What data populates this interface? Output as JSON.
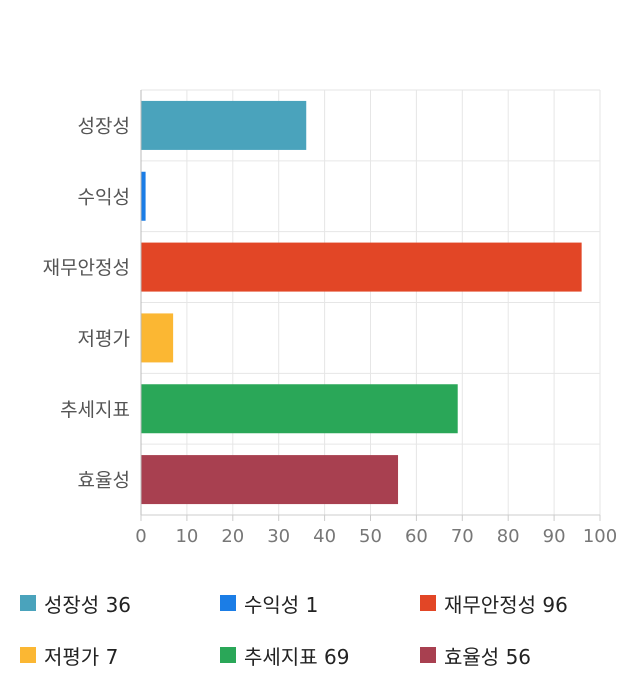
{
  "chart_data": {
    "type": "bar",
    "orientation": "horizontal",
    "categories": [
      "성장성",
      "수익성",
      "재무안정성",
      "저평가",
      "추세지표",
      "효율성"
    ],
    "values": [
      36,
      1,
      96,
      7,
      69,
      56
    ],
    "colors": [
      "#4aa3bc",
      "#1b7de6",
      "#e24626",
      "#fbb733",
      "#2aa758",
      "#a84050"
    ],
    "xlim": [
      0,
      100
    ],
    "x_ticks": [
      "0",
      "10",
      "20",
      "30",
      "40",
      "50",
      "60",
      "70",
      "80",
      "90",
      "100"
    ],
    "grid": true,
    "legend_position": "bottom"
  },
  "legend": [
    {
      "label": "성장성",
      "value": "36"
    },
    {
      "label": "수익성",
      "value": "1"
    },
    {
      "label": "재무안정성",
      "value": "96"
    },
    {
      "label": "저평가",
      "value": "7"
    },
    {
      "label": "추세지표",
      "value": "69"
    },
    {
      "label": "효율성",
      "value": "56"
    }
  ]
}
